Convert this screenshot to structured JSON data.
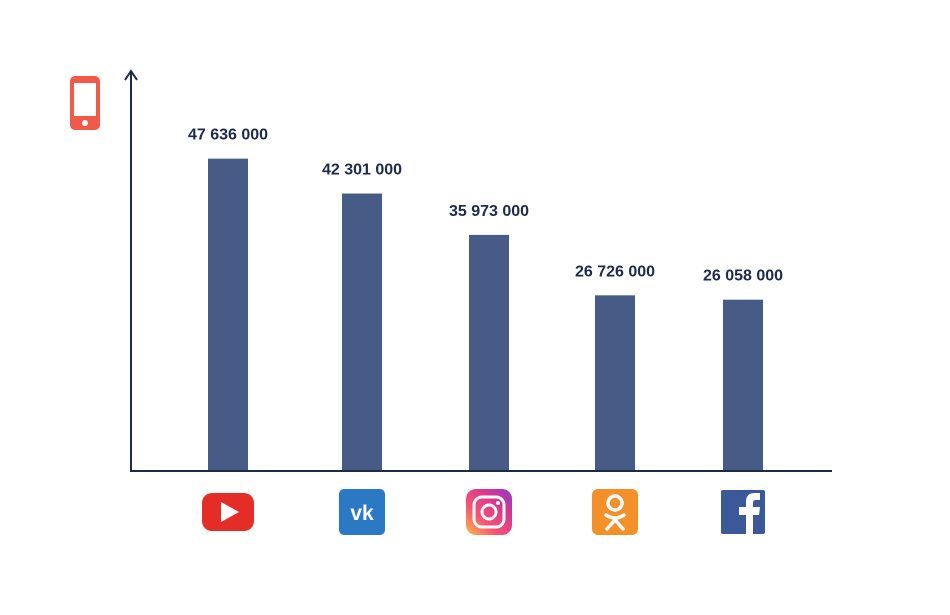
{
  "chart_data": {
    "type": "bar",
    "title": "",
    "xlabel": "",
    "ylabel": "",
    "y_icon": "smartphone-icon",
    "categories": [
      "YouTube",
      "VK",
      "Instagram",
      "Odnoklassniki",
      "Facebook"
    ],
    "category_icons": [
      "youtube-icon",
      "vk-icon",
      "instagram-icon",
      "odnoklassniki-icon",
      "facebook-icon"
    ],
    "values": [
      47636000,
      42301000,
      35973000,
      26726000,
      26058000
    ],
    "value_labels": [
      "47 636 000",
      "42 301 000",
      "35 973 000",
      "26 726 000",
      "26 058 000"
    ],
    "ylim": [
      0,
      56000000
    ],
    "grid": false,
    "legend": "none"
  },
  "colors": {
    "bar": "#465c87",
    "axis": "#1d2a4a",
    "label": "#1d2a4a",
    "phone_icon": "#f15a4a",
    "youtube": "#e52d27",
    "vk": "#2b78c5",
    "odnoklassniki": "#f4902a",
    "facebook": "#3b5998"
  }
}
